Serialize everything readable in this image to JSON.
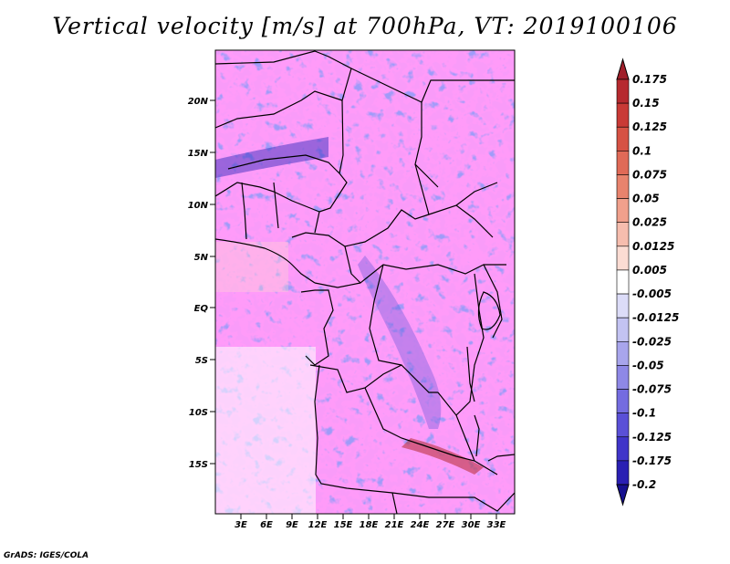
{
  "title": "Vertical velocity [m/s] at 700hPa, VT: 2019100106",
  "footer": "GrADS: IGES/COLA",
  "map": {
    "lat_labels": [
      "20N",
      "15N",
      "10N",
      "5N",
      "EQ",
      "5S",
      "10S",
      "15S"
    ],
    "lon_labels": [
      "3E",
      "6E",
      "9E",
      "12E",
      "15E",
      "18E",
      "21E",
      "24E",
      "27E",
      "30E",
      "33E"
    ]
  },
  "colorbar": {
    "labels": [
      "0.175",
      "0.15",
      "0.125",
      "0.1",
      "0.075",
      "0.05",
      "0.025",
      "0.0125",
      "0.005",
      "-0.005",
      "-0.0125",
      "-0.025",
      "-0.05",
      "-0.075",
      "-0.1",
      "-0.125",
      "-0.175",
      "-0.2"
    ],
    "colors": [
      "#a01f2a",
      "#b62a2f",
      "#c93a36",
      "#d65244",
      "#e06a57",
      "#e8836d",
      "#f0a08c",
      "#f6bdae",
      "#fbdcd3",
      "#ffffff",
      "#dcdcf8",
      "#c3c3f2",
      "#a8a5ec",
      "#8e88e6",
      "#746ce0",
      "#5a50d7",
      "#4035c9",
      "#2a1fb3",
      "#16108f"
    ]
  }
}
